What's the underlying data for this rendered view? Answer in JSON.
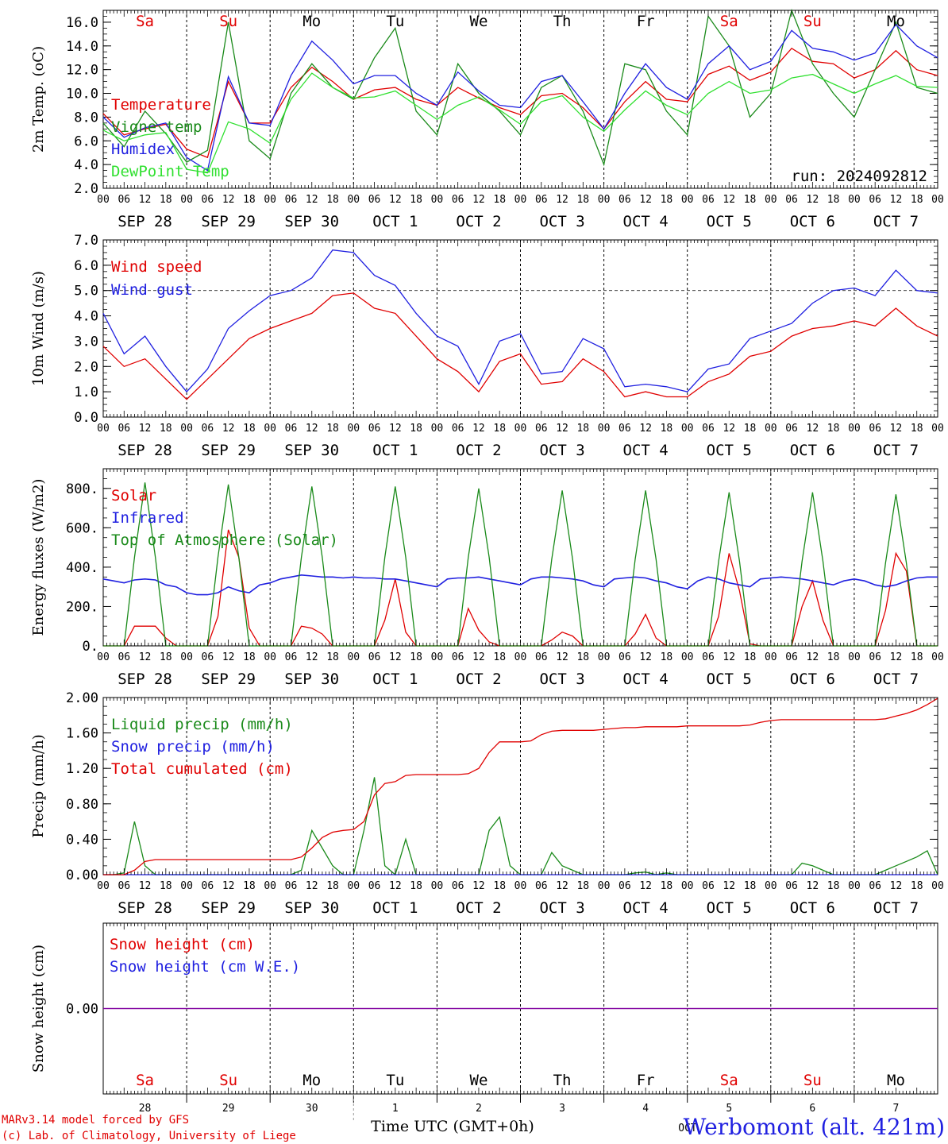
{
  "colors": {
    "red": "#e00000",
    "blue": "#2020e0",
    "green": "#1a8a1a",
    "lightgreen": "#30e030",
    "purple": "#8000a0",
    "black": "#000000"
  },
  "run_label": "run: 2024092812",
  "hour_labels": [
    "00",
    "06",
    "12",
    "18"
  ],
  "final_hour_label": "00",
  "date_labels": [
    "SEP 28",
    "SEP 29",
    "SEP 30",
    "OCT  1",
    "OCT  2",
    "OCT  3",
    "OCT  4",
    "OCT  5",
    "OCT  6",
    "OCT  7"
  ],
  "day_names": [
    {
      "text": "Sa",
      "color": "red"
    },
    {
      "text": "Su",
      "color": "red"
    },
    {
      "text": "Mo",
      "color": "black"
    },
    {
      "text": "Tu",
      "color": "black"
    },
    {
      "text": "We",
      "color": "black"
    },
    {
      "text": "Th",
      "color": "black"
    },
    {
      "text": "Fr",
      "color": "black"
    },
    {
      "text": "Sa",
      "color": "red"
    },
    {
      "text": "Su",
      "color": "red"
    },
    {
      "text": "Mo",
      "color": "black"
    }
  ],
  "day_numbers": [
    "28",
    "29",
    "30",
    "1",
    "2",
    "3",
    "4",
    "5",
    "6",
    "7"
  ],
  "month_label": "OCT",
  "x_axis_title": "Time UTC (GMT+0h)",
  "footer_line1": "MARv3.14 model forced by GFS",
  "footer_line2": "(c) Lab. of Climatology, University of Liege",
  "station": "Werbomont (alt. 421m)",
  "chart_data": [
    {
      "type": "line",
      "ylabel": "2m Temp. (oC)",
      "ylim": [
        2.0,
        17.0
      ],
      "yticks": [
        "2.0",
        "4.0",
        "6.0",
        "8.0",
        "10.0",
        "12.0",
        "14.0",
        "16.0"
      ],
      "x_hours": [
        0,
        6,
        12,
        18,
        24,
        30,
        36,
        42,
        48,
        54,
        60,
        66,
        72,
        78,
        84,
        90,
        96,
        102,
        108,
        114,
        120,
        126,
        132,
        138,
        144,
        150,
        156,
        162,
        168,
        174,
        180,
        186,
        192,
        198,
        204,
        210,
        216,
        222,
        228,
        234,
        240
      ],
      "series": [
        {
          "name": "Temperature",
          "color": "red",
          "values": [
            8.3,
            6.5,
            7.0,
            7.4,
            5.3,
            4.6,
            11.0,
            7.5,
            7.5,
            10.5,
            12.2,
            11.0,
            9.5,
            10.3,
            10.5,
            9.5,
            9.0,
            10.5,
            9.6,
            8.8,
            8.2,
            9.8,
            10.0,
            8.8,
            7.0,
            9.3,
            11.0,
            9.5,
            9.3,
            11.6,
            12.3,
            11.1,
            11.8,
            13.8,
            12.7,
            12.5,
            11.3,
            12.0,
            13.6,
            12.0,
            11.5
          ]
        },
        {
          "name": "Vigne temp",
          "color": "green",
          "values": [
            7.5,
            5.5,
            8.5,
            6.6,
            4.2,
            5.2,
            16.0,
            6.0,
            4.5,
            10.0,
            12.5,
            10.5,
            9.5,
            13.0,
            15.5,
            8.5,
            6.5,
            12.5,
            10.0,
            8.5,
            6.5,
            10.5,
            11.5,
            8.5,
            4.0,
            12.5,
            12.0,
            8.5,
            6.5,
            16.5,
            14.0,
            8.0,
            10.0,
            17.0,
            12.5,
            10.0,
            8.0,
            12.0,
            16.0,
            10.5,
            10.0
          ]
        },
        {
          "name": "Humidex",
          "color": "blue",
          "values": [
            8.0,
            6.3,
            7.1,
            7.5,
            4.6,
            3.5,
            11.4,
            7.5,
            7.3,
            11.5,
            14.4,
            12.8,
            10.8,
            11.5,
            11.5,
            10.0,
            9.0,
            11.8,
            10.2,
            9.0,
            8.8,
            11.0,
            11.5,
            9.3,
            7.0,
            10.0,
            12.5,
            10.5,
            9.5,
            12.5,
            14.0,
            12.0,
            12.7,
            15.3,
            13.8,
            13.5,
            12.8,
            13.4,
            15.8,
            14.0,
            13.0
          ]
        },
        {
          "name": "DewPoint Temp",
          "color": "lightgreen",
          "values": [
            6.9,
            6.0,
            6.5,
            6.7,
            3.6,
            3.3,
            7.6,
            7.0,
            5.8,
            9.5,
            11.7,
            10.5,
            9.6,
            9.7,
            10.2,
            9.0,
            7.8,
            9.0,
            9.7,
            8.6,
            7.4,
            9.3,
            9.8,
            8.0,
            6.8,
            8.6,
            10.2,
            9.0,
            8.2,
            10.0,
            11.0,
            10.0,
            10.3,
            11.3,
            11.6,
            10.8,
            10.0,
            10.8,
            11.5,
            10.6,
            10.5
          ]
        }
      ]
    },
    {
      "type": "line",
      "ylabel": "10m Wind (m/s)",
      "ylim": [
        0.0,
        7.0
      ],
      "yticks": [
        "0.0",
        "1.0",
        "2.0",
        "3.0",
        "4.0",
        "5.0",
        "6.0",
        "7.0"
      ],
      "reference_line": 5.0,
      "x_hours": [
        0,
        6,
        12,
        18,
        24,
        30,
        36,
        42,
        48,
        54,
        60,
        66,
        72,
        78,
        84,
        90,
        96,
        102,
        108,
        114,
        120,
        126,
        132,
        138,
        144,
        150,
        156,
        162,
        168,
        174,
        180,
        186,
        192,
        198,
        204,
        210,
        216,
        222,
        228,
        234,
        240
      ],
      "series": [
        {
          "name": "Wind speed",
          "color": "red",
          "values": [
            2.8,
            2.0,
            2.3,
            1.5,
            0.7,
            1.5,
            2.3,
            3.1,
            3.5,
            3.8,
            4.1,
            4.8,
            4.9,
            4.3,
            4.1,
            3.2,
            2.3,
            1.8,
            1.0,
            2.2,
            2.5,
            1.3,
            1.4,
            2.3,
            1.8,
            0.8,
            1.0,
            0.8,
            0.8,
            1.4,
            1.7,
            2.4,
            2.6,
            3.2,
            3.5,
            3.6,
            3.8,
            3.6,
            4.3,
            3.6,
            3.2
          ]
        },
        {
          "name": "Wind gust",
          "color": "blue",
          "values": [
            4.1,
            2.5,
            3.2,
            2.0,
            1.0,
            1.9,
            3.5,
            4.2,
            4.8,
            5.0,
            5.5,
            6.6,
            6.5,
            5.6,
            5.2,
            4.1,
            3.2,
            2.8,
            1.3,
            3.0,
            3.3,
            1.7,
            1.8,
            3.1,
            2.7,
            1.2,
            1.3,
            1.2,
            1.0,
            1.9,
            2.1,
            3.1,
            3.4,
            3.7,
            4.5,
            5.0,
            5.1,
            4.8,
            5.8,
            5.0,
            4.9
          ]
        }
      ]
    },
    {
      "type": "line",
      "ylabel": "Energy fluxes (W/m2)",
      "ylim": [
        0,
        900
      ],
      "yticks": [
        "0.",
        "200.",
        "400.",
        "600.",
        "800."
      ],
      "x_hours": [
        0,
        3,
        6,
        9,
        12,
        15,
        18,
        21,
        24,
        27,
        30,
        33,
        36,
        39,
        42,
        45,
        48,
        51,
        54,
        57,
        60,
        63,
        66,
        69,
        72,
        75,
        78,
        81,
        84,
        87,
        90,
        93,
        96,
        99,
        102,
        105,
        108,
        111,
        114,
        117,
        120,
        123,
        126,
        129,
        132,
        135,
        138,
        141,
        144,
        147,
        150,
        153,
        156,
        159,
        162,
        165,
        168,
        171,
        174,
        177,
        180,
        183,
        186,
        189,
        192,
        195,
        198,
        201,
        204,
        207,
        210,
        213,
        216,
        219,
        222,
        225,
        228,
        231,
        234,
        237,
        240
      ],
      "series": [
        {
          "name": "Solar",
          "color": "red",
          "values": [
            0,
            0,
            0,
            100,
            100,
            100,
            40,
            0,
            0,
            0,
            0,
            150,
            590,
            450,
            90,
            0,
            0,
            0,
            0,
            100,
            90,
            60,
            0,
            0,
            0,
            0,
            0,
            130,
            340,
            70,
            0,
            0,
            0,
            0,
            0,
            190,
            80,
            20,
            0,
            0,
            0,
            0,
            0,
            30,
            70,
            50,
            0,
            0,
            0,
            0,
            0,
            60,
            160,
            40,
            0,
            0,
            0,
            0,
            0,
            150,
            470,
            280,
            10,
            0,
            0,
            0,
            0,
            200,
            330,
            130,
            0,
            0,
            0,
            0,
            0,
            180,
            470,
            380,
            0,
            0,
            0
          ]
        },
        {
          "name": "Infrared",
          "color": "blue",
          "values": [
            340,
            330,
            320,
            335,
            340,
            335,
            310,
            300,
            270,
            260,
            260,
            270,
            300,
            280,
            270,
            310,
            320,
            340,
            350,
            360,
            355,
            350,
            350,
            345,
            350,
            345,
            345,
            340,
            340,
            330,
            320,
            310,
            300,
            340,
            345,
            345,
            350,
            340,
            330,
            320,
            310,
            340,
            350,
            350,
            345,
            340,
            330,
            310,
            300,
            340,
            345,
            350,
            345,
            330,
            320,
            300,
            290,
            330,
            350,
            340,
            320,
            310,
            300,
            340,
            345,
            350,
            345,
            340,
            330,
            320,
            310,
            330,
            340,
            330,
            310,
            300,
            310,
            330,
            345,
            350,
            350
          ]
        },
        {
          "name": "Top of Atmosphere (Solar)",
          "color": "green",
          "values": [
            0,
            0,
            0,
            450,
            830,
            450,
            0,
            0,
            0,
            0,
            0,
            450,
            820,
            450,
            0,
            0,
            0,
            0,
            0,
            450,
            810,
            450,
            0,
            0,
            0,
            0,
            0,
            450,
            810,
            450,
            0,
            0,
            0,
            0,
            0,
            450,
            800,
            450,
            0,
            0,
            0,
            0,
            0,
            440,
            790,
            440,
            0,
            0,
            0,
            0,
            0,
            440,
            790,
            440,
            0,
            0,
            0,
            0,
            0,
            430,
            780,
            430,
            0,
            0,
            0,
            0,
            0,
            430,
            780,
            430,
            0,
            0,
            0,
            0,
            0,
            420,
            770,
            420,
            0,
            0,
            0
          ]
        }
      ]
    },
    {
      "type": "line",
      "ylabel": "Precip (mm/h)",
      "ylim": [
        0.0,
        2.0
      ],
      "yticks": [
        "0.00",
        "0.40",
        "0.80",
        "1.20",
        "1.60",
        "2.00"
      ],
      "x_hours": [
        0,
        3,
        6,
        9,
        12,
        15,
        18,
        21,
        24,
        27,
        30,
        33,
        36,
        39,
        42,
        45,
        48,
        51,
        54,
        57,
        60,
        63,
        66,
        69,
        72,
        75,
        78,
        81,
        84,
        87,
        90,
        93,
        96,
        99,
        102,
        105,
        108,
        111,
        114,
        117,
        120,
        123,
        126,
        129,
        132,
        135,
        138,
        141,
        144,
        147,
        150,
        153,
        156,
        159,
        162,
        165,
        168,
        171,
        174,
        177,
        180,
        183,
        186,
        189,
        192,
        195,
        198,
        201,
        204,
        207,
        210,
        213,
        216,
        219,
        222,
        225,
        228,
        231,
        234,
        237,
        240
      ],
      "series": [
        {
          "name": "Liquid precip (mm/h)",
          "color": "green",
          "values": [
            0,
            0,
            0.02,
            0.6,
            0.1,
            0,
            0,
            0,
            0,
            0,
            0,
            0,
            0,
            0,
            0,
            0,
            0,
            0,
            0,
            0.05,
            0.5,
            0.3,
            0.1,
            0,
            0,
            0.5,
            1.1,
            0.1,
            0,
            0.4,
            0,
            0,
            0,
            0,
            0,
            0,
            0,
            0.5,
            0.65,
            0.1,
            0,
            0,
            0,
            0.25,
            0.1,
            0.05,
            0,
            0,
            0,
            0,
            0,
            0.02,
            0.03,
            0,
            0.02,
            0,
            0,
            0,
            0,
            0,
            0,
            0,
            0,
            0,
            0,
            0,
            0,
            0.13,
            0.1,
            0.05,
            0,
            0,
            0,
            0,
            0,
            0.05,
            0.1,
            0.15,
            0.2,
            0.27,
            0
          ]
        },
        {
          "name": "Snow precip (mm/h)",
          "color": "blue",
          "values": [
            0,
            0,
            0,
            0,
            0,
            0,
            0,
            0,
            0,
            0,
            0,
            0,
            0,
            0,
            0,
            0,
            0,
            0,
            0,
            0,
            0,
            0,
            0,
            0,
            0,
            0,
            0,
            0,
            0,
            0,
            0,
            0,
            0,
            0,
            0,
            0,
            0,
            0,
            0,
            0,
            0,
            0,
            0,
            0,
            0,
            0,
            0,
            0,
            0,
            0,
            0,
            0,
            0,
            0,
            0,
            0,
            0,
            0,
            0,
            0,
            0,
            0,
            0,
            0,
            0,
            0,
            0,
            0,
            0,
            0,
            0,
            0,
            0,
            0,
            0,
            0,
            0,
            0,
            0,
            0,
            0
          ]
        },
        {
          "name": "Total cumulated (cm)",
          "color": "red",
          "values": [
            0,
            0,
            0,
            0.05,
            0.15,
            0.17,
            0.17,
            0.17,
            0.17,
            0.17,
            0.17,
            0.17,
            0.17,
            0.17,
            0.17,
            0.17,
            0.17,
            0.17,
            0.17,
            0.2,
            0.3,
            0.42,
            0.48,
            0.5,
            0.51,
            0.6,
            0.9,
            1.03,
            1.05,
            1.12,
            1.13,
            1.13,
            1.13,
            1.13,
            1.13,
            1.14,
            1.2,
            1.38,
            1.5,
            1.5,
            1.5,
            1.51,
            1.58,
            1.62,
            1.63,
            1.63,
            1.63,
            1.63,
            1.64,
            1.65,
            1.66,
            1.66,
            1.67,
            1.67,
            1.67,
            1.67,
            1.68,
            1.68,
            1.68,
            1.68,
            1.68,
            1.68,
            1.69,
            1.72,
            1.74,
            1.75,
            1.75,
            1.75,
            1.75,
            1.75,
            1.75,
            1.75,
            1.75,
            1.75,
            1.75,
            1.76,
            1.79,
            1.82,
            1.86,
            1.92,
            1.99
          ]
        }
      ]
    },
    {
      "type": "line",
      "ylabel": "Snow height (cm)",
      "ylim": [
        -1.0,
        1.0
      ],
      "yticks": [
        "0.00"
      ],
      "x_hours": [
        0,
        240
      ],
      "series": [
        {
          "name": "Snow height (cm)",
          "color": "red",
          "values": [
            0,
            0
          ]
        },
        {
          "name": "Snow height (cm W.E.)",
          "color": "blue",
          "values": [
            0,
            0
          ]
        }
      ]
    }
  ]
}
